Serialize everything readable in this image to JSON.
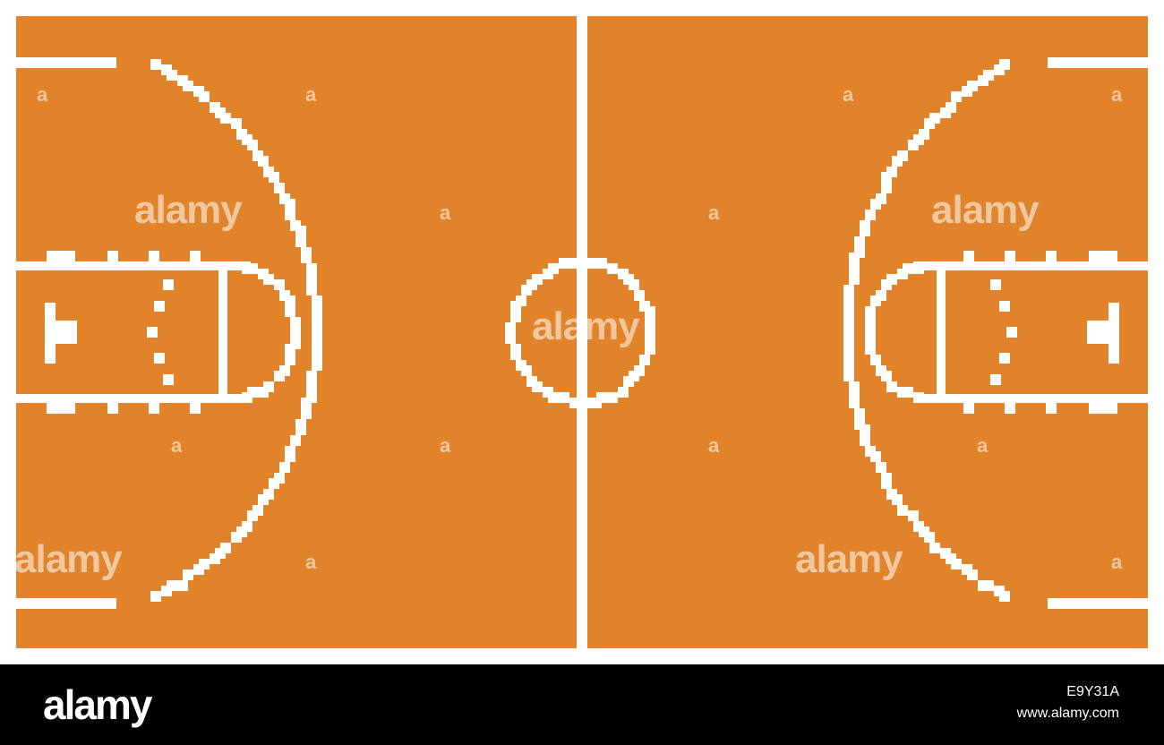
{
  "court": {
    "floor_color": "#E0832A",
    "line_color": "#FFFFFF",
    "background_color": "#FFFFFF"
  },
  "watermark": {
    "large_text": "alamy",
    "small_text": "a"
  },
  "footer": {
    "background_color": "#000000",
    "logo_text": "alamy",
    "image_id": "E9Y31A",
    "url": "www.alamy.com"
  }
}
